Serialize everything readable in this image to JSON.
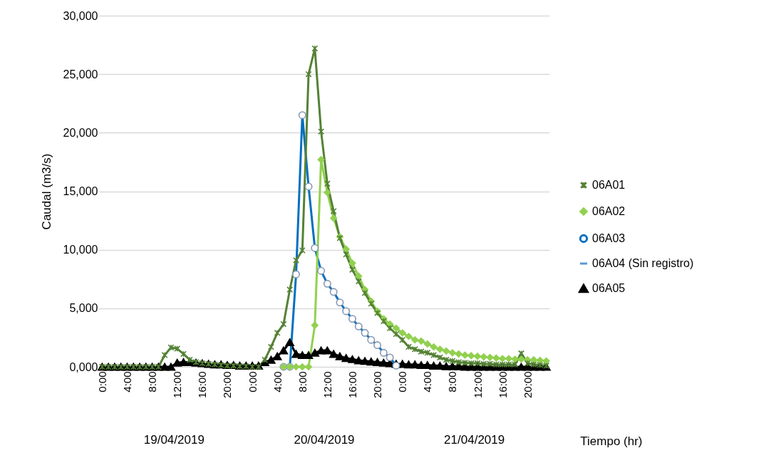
{
  "chart_data": {
    "type": "line",
    "categories": [
      "0:00",
      null,
      null,
      null,
      "4:00",
      null,
      null,
      null,
      "8:00",
      null,
      null,
      null,
      "12:00",
      null,
      null,
      null,
      "16:00",
      null,
      null,
      null,
      "20:00",
      null,
      null,
      null,
      "0:00",
      null,
      null,
      null,
      "4:00",
      null,
      null,
      null,
      "8:00",
      null,
      null,
      null,
      "12:00",
      null,
      null,
      null,
      "16:00",
      null,
      null,
      null,
      "20:00",
      null,
      null,
      null,
      "0:00",
      null,
      null,
      null,
      "4:00",
      null,
      null,
      null,
      "8:00",
      null,
      null,
      null,
      "12:00",
      null,
      null,
      null,
      "16:00",
      null,
      null,
      null,
      "20:00",
      null,
      null,
      null
    ],
    "xlabel": "Tiempo (hr)",
    "ylabel": "Caudal (m3/s)",
    "ylim": [
      0,
      30000
    ],
    "yticks": [
      {
        "value": 0,
        "label": "0,000"
      },
      {
        "value": 5000,
        "label": "5,000"
      },
      {
        "value": 10000,
        "label": "10,000"
      },
      {
        "value": 15000,
        "label": "15,000"
      },
      {
        "value": 20000,
        "label": "20,000"
      },
      {
        "value": 25000,
        "label": "25,000"
      },
      {
        "value": 30000,
        "label": "30,000"
      }
    ],
    "grid": "y",
    "legend": "right",
    "annotations": [
      "19/04/2019",
      "20/04/2019",
      "21/04/2019"
    ],
    "series": [
      {
        "name": "06A01",
        "color": "#548235",
        "marker": "cross",
        "values": [
          0,
          0,
          0,
          0,
          0,
          0,
          0,
          0,
          0,
          0,
          1000,
          1650,
          1550,
          1100,
          600,
          400,
          300,
          250,
          200,
          150,
          100,
          100,
          50,
          50,
          0,
          0,
          600,
          1700,
          2900,
          3650,
          6600,
          9100,
          9950,
          25000,
          27200,
          20100,
          15650,
          13300,
          11000,
          9600,
          8300,
          7300,
          6300,
          5400,
          4600,
          3900,
          3300,
          2800,
          2300,
          1700,
          1500,
          1300,
          1200,
          1000,
          800,
          600,
          500,
          400,
          350,
          300,
          300,
          250,
          250,
          200,
          200,
          200,
          200,
          1150,
          300,
          200,
          150,
          100
        ]
      },
      {
        "name": "06A02",
        "color": "#92d050",
        "marker": "diamond",
        "values": [
          null,
          null,
          null,
          null,
          null,
          null,
          null,
          null,
          null,
          null,
          null,
          null,
          null,
          null,
          null,
          null,
          null,
          null,
          null,
          null,
          null,
          null,
          null,
          null,
          null,
          null,
          null,
          null,
          null,
          0,
          0,
          0,
          0,
          0,
          3550,
          17700,
          14900,
          12700,
          11100,
          10050,
          8850,
          7750,
          6600,
          5600,
          4750,
          4100,
          3650,
          3300,
          2900,
          2600,
          2300,
          2200,
          1950,
          1700,
          1500,
          1350,
          1200,
          1100,
          1000,
          950,
          900,
          850,
          800,
          750,
          700,
          700,
          650,
          650,
          600,
          600,
          550,
          500
        ]
      },
      {
        "name": "06A03",
        "color": "#0070c0",
        "marker": "circle",
        "values": [
          null,
          null,
          null,
          null,
          null,
          null,
          null,
          null,
          null,
          null,
          null,
          null,
          null,
          null,
          null,
          null,
          null,
          null,
          null,
          null,
          null,
          null,
          null,
          null,
          null,
          null,
          null,
          null,
          null,
          0,
          0,
          7900,
          21500,
          15400,
          10150,
          8200,
          7100,
          6400,
          5500,
          4750,
          4100,
          3450,
          2900,
          2300,
          1850,
          1200,
          800,
          100,
          null,
          null,
          null,
          null,
          null,
          null,
          null,
          null,
          null,
          null,
          null,
          null,
          null,
          null,
          null,
          null,
          null,
          null,
          null,
          null,
          null,
          null,
          null,
          null
        ]
      },
      {
        "name": "06A04 (Sin registro)",
        "color": "#5b9bd5",
        "marker": "none",
        "values": [
          null,
          null,
          null,
          null,
          null,
          null,
          null,
          null,
          null,
          null,
          null,
          null,
          null,
          null,
          null,
          null,
          null,
          null,
          null,
          null,
          null,
          null,
          null,
          null,
          null,
          null,
          null,
          null,
          null,
          null,
          null,
          null,
          null,
          null,
          null,
          null,
          null,
          null,
          null,
          null,
          null,
          null,
          null,
          null,
          null,
          null,
          null,
          null,
          null,
          null,
          null,
          null,
          null,
          null,
          null,
          null,
          null,
          null,
          null,
          null,
          null,
          null,
          null,
          null,
          null,
          null,
          null,
          null,
          null,
          null,
          null,
          null
        ]
      },
      {
        "name": "06A05",
        "color": "#000000",
        "marker": "triangle",
        "values": [
          0,
          0,
          0,
          0,
          0,
          0,
          0,
          0,
          0,
          0,
          0,
          0,
          350,
          400,
          400,
          350,
          300,
          250,
          200,
          200,
          150,
          150,
          100,
          100,
          100,
          100,
          400,
          600,
          900,
          1400,
          2100,
          1100,
          1000,
          1000,
          1200,
          1400,
          1400,
          1100,
          900,
          750,
          650,
          550,
          500,
          450,
          400,
          350,
          300,
          250,
          250,
          200,
          200,
          150,
          150,
          100,
          100,
          50,
          50,
          50,
          0,
          0,
          0,
          0,
          0,
          0,
          0,
          0,
          0,
          0,
          0,
          0,
          0,
          0
        ]
      }
    ]
  }
}
